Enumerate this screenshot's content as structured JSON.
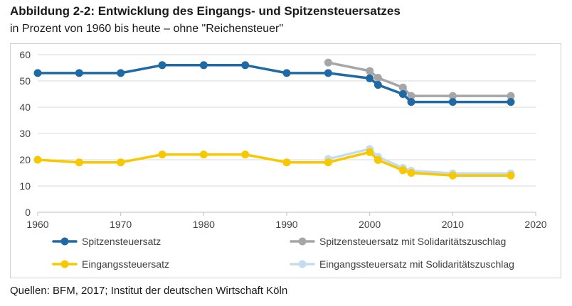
{
  "header": {
    "title": "Abbildung 2-2: Entwicklung des Eingangs- und Spitzensteuersatzes",
    "subtitle": "in Prozent von 1960 bis heute – ohne \"Reichensteuer\""
  },
  "footer": {
    "source": "Quellen: BFM, 2017; Institut der deutschen Wirtschaft Köln"
  },
  "chart_data": {
    "type": "line",
    "title": "Abbildung 2-2: Entwicklung des Eingangs- und Spitzensteuersatzes",
    "subtitle": "in Prozent von 1960 bis heute – ohne \"Reichensteuer\"",
    "xlabel": "",
    "ylabel": "",
    "xlim": [
      1960,
      2020
    ],
    "ylim": [
      0,
      60
    ],
    "x_ticks": [
      1960,
      1970,
      1980,
      1990,
      2000,
      2010,
      2020
    ],
    "y_ticks": [
      0,
      10,
      20,
      30,
      40,
      50,
      60
    ],
    "grid": "horizontal",
    "legend_position": "bottom",
    "series": [
      {
        "name": "Spitzensteuersatz mit Solidaritätszuschlag",
        "color": "#a6a6a6",
        "points": [
          [
            1995,
            57
          ],
          [
            2000,
            53.8
          ],
          [
            2001,
            51.2
          ],
          [
            2004,
            47.5
          ],
          [
            2005,
            44.3
          ],
          [
            2010,
            44.3
          ],
          [
            2017,
            44.3
          ]
        ]
      },
      {
        "name": "Spitzensteuersatz",
        "color": "#1f6aa5",
        "points": [
          [
            1960,
            53
          ],
          [
            1965,
            53
          ],
          [
            1970,
            53
          ],
          [
            1975,
            56
          ],
          [
            1980,
            56
          ],
          [
            1985,
            56
          ],
          [
            1990,
            53
          ],
          [
            1995,
            53
          ],
          [
            2000,
            51
          ],
          [
            2001,
            48.5
          ],
          [
            2004,
            45
          ],
          [
            2005,
            42
          ],
          [
            2010,
            42
          ],
          [
            2017,
            42
          ]
        ]
      },
      {
        "name": "Eingangssteuersatz mit Solidaritätszuschlag",
        "color": "#c5dcef",
        "points": [
          [
            1995,
            20.3
          ],
          [
            2000,
            24.1
          ],
          [
            2001,
            21.1
          ],
          [
            2004,
            16.9
          ],
          [
            2005,
            15.8
          ],
          [
            2010,
            14.8
          ],
          [
            2017,
            14.8
          ]
        ]
      },
      {
        "name": "Eingangssteuersatz",
        "color": "#f7c800",
        "points": [
          [
            1960,
            20
          ],
          [
            1965,
            19
          ],
          [
            1970,
            19
          ],
          [
            1975,
            22
          ],
          [
            1980,
            22
          ],
          [
            1985,
            22
          ],
          [
            1990,
            19
          ],
          [
            1995,
            19
          ],
          [
            2000,
            22.9
          ],
          [
            2001,
            19.9
          ],
          [
            2004,
            16
          ],
          [
            2005,
            15
          ],
          [
            2010,
            14
          ],
          [
            2017,
            14
          ]
        ]
      }
    ],
    "legend": [
      {
        "label": "Spitzensteuersatz",
        "color": "#1f6aa5"
      },
      {
        "label": "Spitzensteuersatz mit Solidaritätszuschlag",
        "color": "#a6a6a6"
      },
      {
        "label": "Eingangssteuersatz",
        "color": "#f7c800"
      },
      {
        "label": "Eingangssteuersatz mit Solidaritätszuschlag",
        "color": "#c5dcef"
      }
    ]
  }
}
